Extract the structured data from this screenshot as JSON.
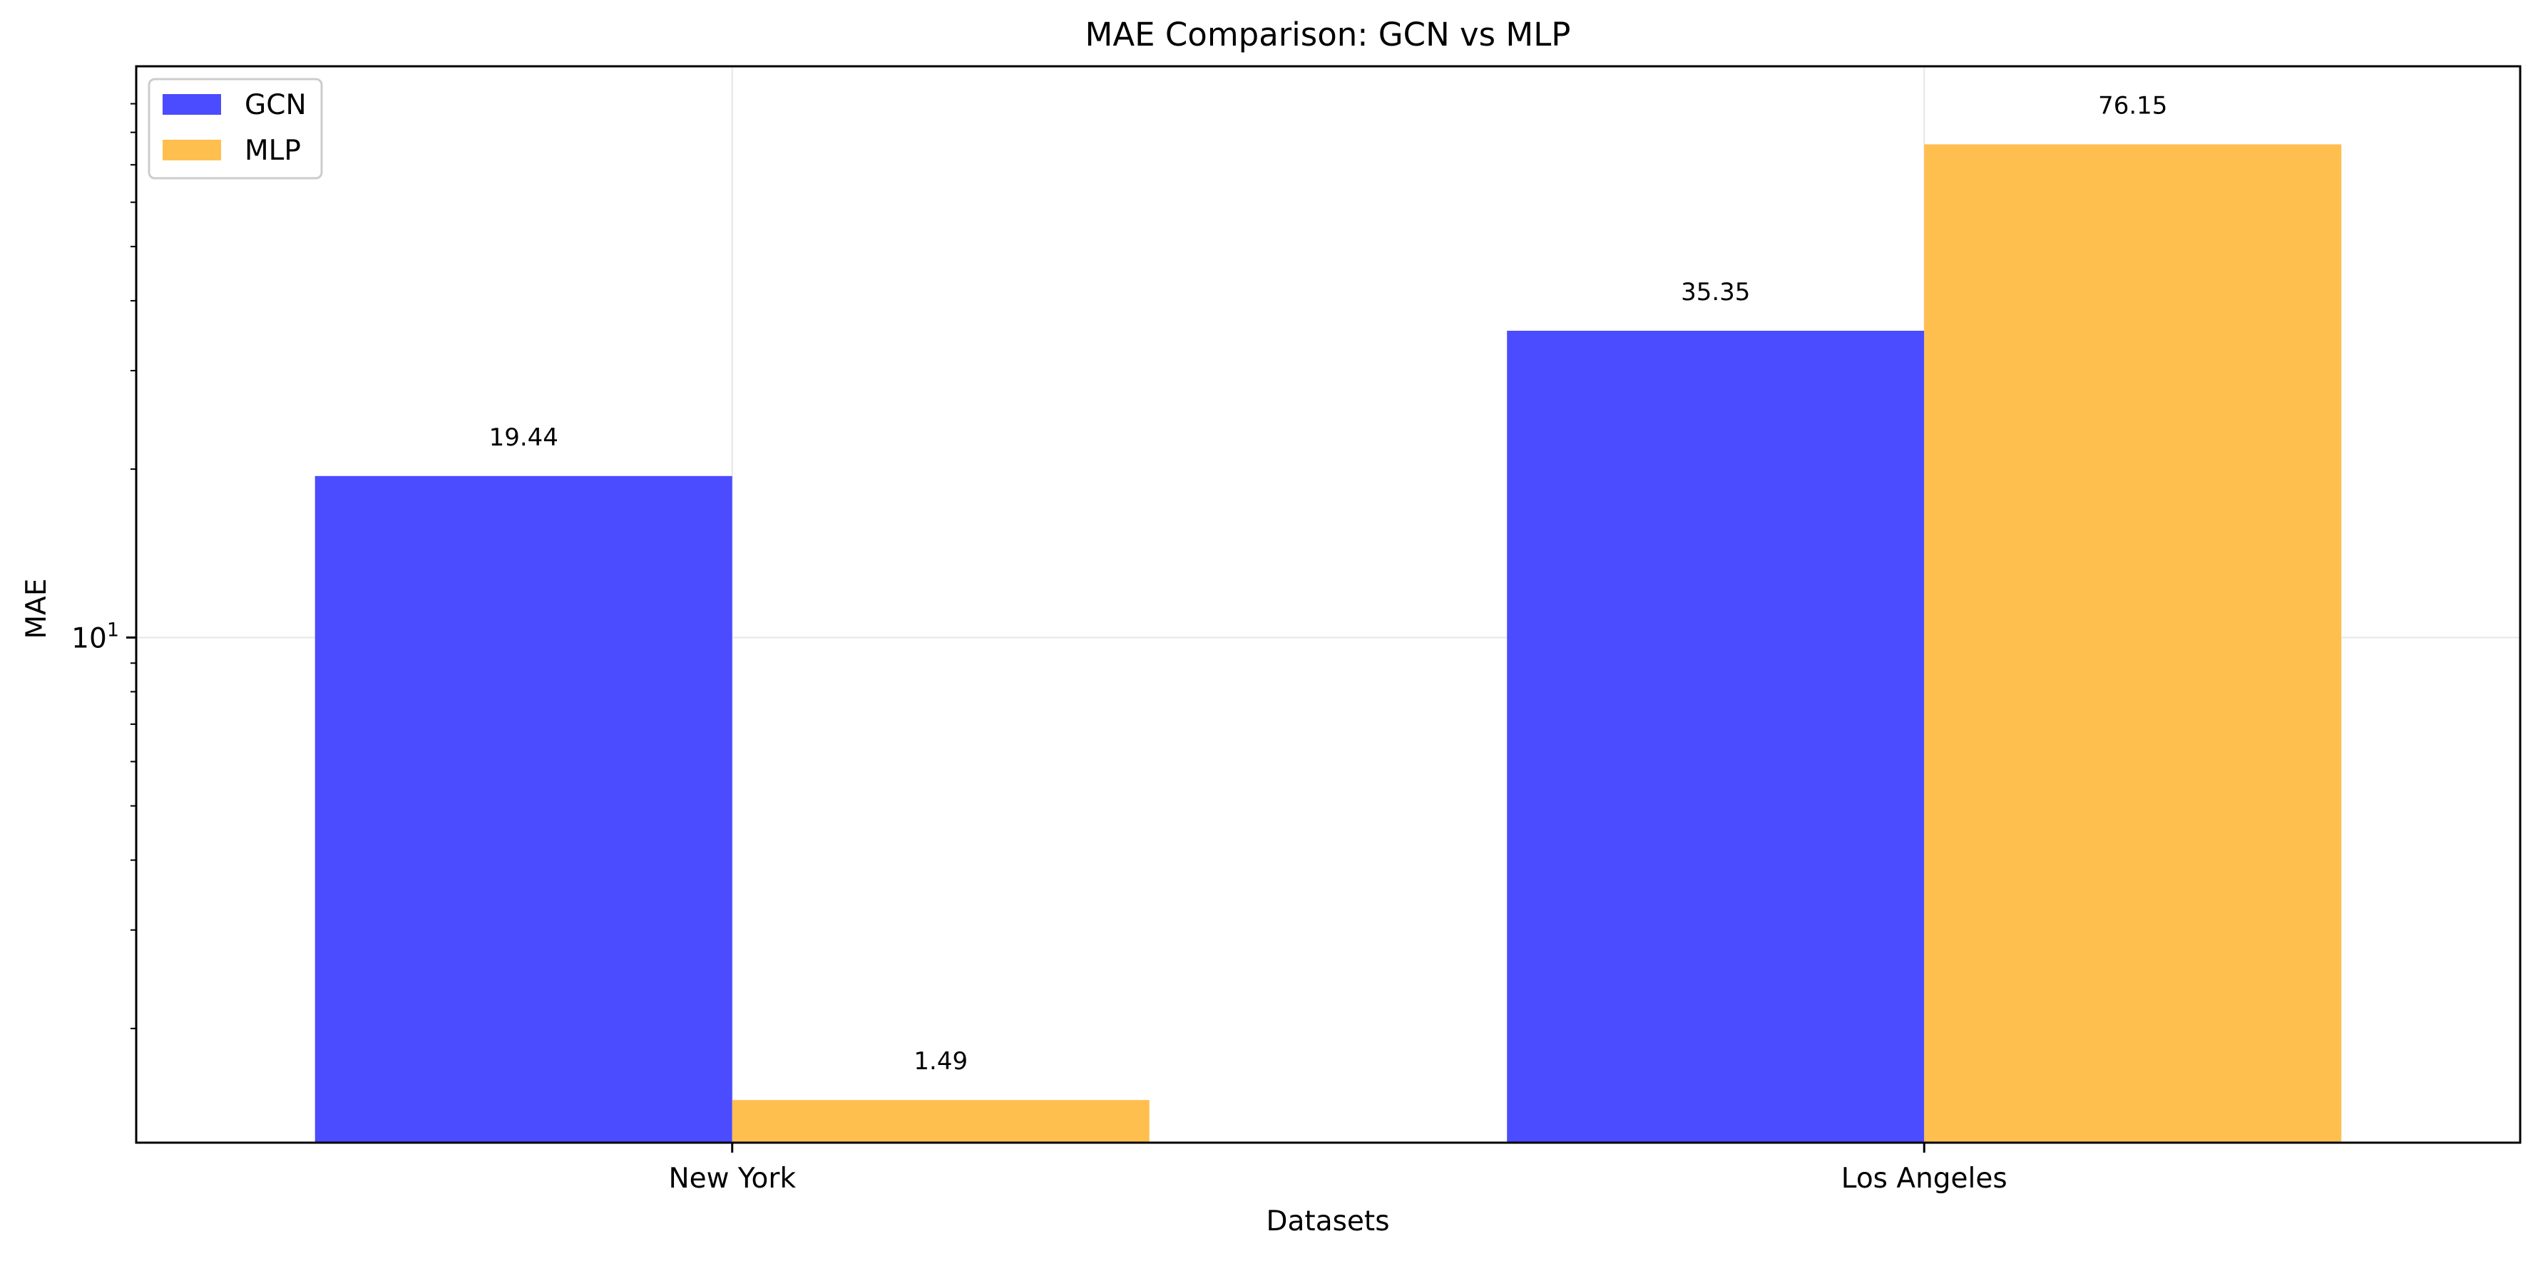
{
  "chart_data": {
    "type": "bar",
    "title": "MAE Comparison: GCN vs MLP",
    "xlabel": "Datasets",
    "ylabel": "MAE",
    "yscale": "log",
    "ylim": [
      1.25,
      105
    ],
    "yticks": [
      {
        "value": 10,
        "base": "10",
        "exponent": "1"
      }
    ],
    "grid": true,
    "legend_position": "top-left",
    "categories": [
      "New York",
      "Los Angeles"
    ],
    "series": [
      {
        "name": "GCN",
        "color": "#4b4bff",
        "values": [
          19.44,
          35.35
        ],
        "labels": [
          "19.44",
          "35.35"
        ]
      },
      {
        "name": "MLP",
        "color": "#ffbf4f",
        "values": [
          1.49,
          76.15
        ],
        "labels": [
          "1.49",
          "76.15"
        ]
      }
    ]
  }
}
